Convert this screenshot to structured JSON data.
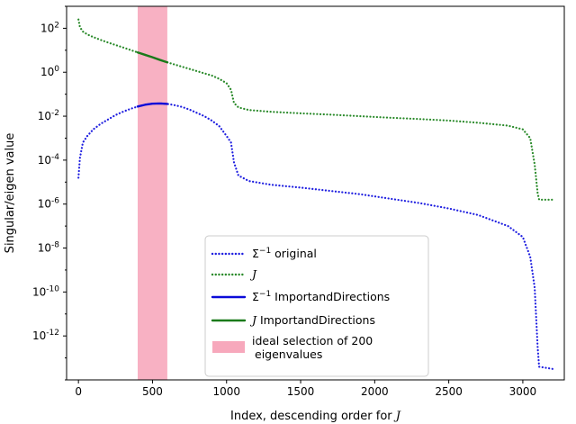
{
  "chart_data": {
    "type": "line",
    "xlabel": "Index, descending order for",
    "xlabel_symbol": "J",
    "ylabel": "Singular/eigen value",
    "xlim": [
      -80,
      3280
    ],
    "ylim_log10": [
      -14,
      3
    ],
    "y_scale": "log",
    "grid": false,
    "x_ticks": [
      0,
      500,
      1000,
      1500,
      2000,
      2500,
      3000
    ],
    "x_tick_labels": [
      "0",
      "500",
      "1000",
      "1500",
      "2000",
      "2500",
      "3000"
    ],
    "y_tick_exponents": [
      2,
      0,
      -2,
      -4,
      -6,
      -8,
      -10,
      -12
    ],
    "y_tick_base": "10",
    "shaded_region": {
      "x": [
        400,
        600
      ],
      "color": "#f7a8bc",
      "label": "ideal selection of 200 eigenvalues"
    },
    "series": [
      {
        "name": "Σ⁻¹ original",
        "style": "dotted",
        "color": "#1f1fe0",
        "x": [
          0,
          10,
          30,
          60,
          100,
          150,
          200,
          250,
          300,
          350,
          400,
          450,
          500,
          550,
          600,
          650,
          700,
          750,
          800,
          850,
          900,
          950,
          1000,
          1030,
          1050,
          1080,
          1150,
          1300,
          1500,
          1700,
          1900,
          2100,
          2300,
          2500,
          2700,
          2900,
          3000,
          3050,
          3080,
          3100,
          3110,
          3200
        ],
        "log10_y": [
          -4.8,
          -3.9,
          -3.2,
          -2.9,
          -2.6,
          -2.35,
          -2.15,
          -1.95,
          -1.8,
          -1.67,
          -1.56,
          -1.48,
          -1.43,
          -1.42,
          -1.44,
          -1.5,
          -1.58,
          -1.7,
          -1.85,
          -2.0,
          -2.2,
          -2.45,
          -2.9,
          -3.2,
          -4.1,
          -4.7,
          -4.95,
          -5.12,
          -5.25,
          -5.4,
          -5.55,
          -5.75,
          -5.95,
          -6.2,
          -6.5,
          -7.0,
          -7.5,
          -8.4,
          -9.8,
          -12.5,
          -13.4,
          -13.5
        ]
      },
      {
        "name": "J",
        "style": "dotted",
        "color": "#2a8a2a",
        "x": [
          0,
          10,
          30,
          60,
          100,
          150,
          200,
          300,
          400,
          500,
          600,
          700,
          800,
          900,
          950,
          1000,
          1030,
          1050,
          1080,
          1150,
          1300,
          1500,
          1700,
          1900,
          2100,
          2300,
          2500,
          2700,
          2900,
          3000,
          3050,
          3080,
          3100,
          3110,
          3200
        ],
        "log10_y": [
          2.4,
          2.05,
          1.85,
          1.72,
          1.6,
          1.47,
          1.35,
          1.13,
          0.9,
          0.68,
          0.45,
          0.25,
          0.05,
          -0.15,
          -0.3,
          -0.5,
          -0.8,
          -1.4,
          -1.6,
          -1.72,
          -1.8,
          -1.87,
          -1.93,
          -2.0,
          -2.07,
          -2.13,
          -2.2,
          -2.3,
          -2.43,
          -2.6,
          -3.0,
          -4.2,
          -5.5,
          -5.8,
          -5.8
        ]
      },
      {
        "name": "Σ⁻¹ ImportandDirections",
        "style": "solid",
        "color": "#0b0bd8",
        "x": [
          400,
          450,
          500,
          550,
          600
        ],
        "log10_y": [
          -1.56,
          -1.48,
          -1.43,
          -1.42,
          -1.44
        ]
      },
      {
        "name": "J ImportandDirections",
        "style": "solid",
        "color": "#1a7a1a",
        "x": [
          400,
          450,
          500,
          550,
          600
        ],
        "log10_y": [
          0.9,
          0.79,
          0.68,
          0.56,
          0.45
        ]
      }
    ],
    "legend": {
      "placement": "lower center",
      "entries": [
        {
          "label": "Σ",
          "sup": "−1",
          "rest": " original",
          "style": "dotted",
          "color": "#1f1fe0"
        },
        {
          "label": "",
          "sup": "",
          "rest": "",
          "math": "J",
          "style": "dotted",
          "color": "#2a8a2a"
        },
        {
          "label": "Σ",
          "sup": "−1",
          "rest": " ImportandDirections",
          "style": "solid",
          "color": "#0b0bd8"
        },
        {
          "label": "",
          "sup": "",
          "math": "J",
          "rest": " ImportandDirections",
          "style": "solid",
          "color": "#1a7a1a"
        },
        {
          "label": "",
          "sup": "",
          "rest": "ideal selection of 200",
          "rest2": "eigenvalues",
          "style": "patch",
          "color": "#f7a8bc"
        }
      ]
    }
  }
}
